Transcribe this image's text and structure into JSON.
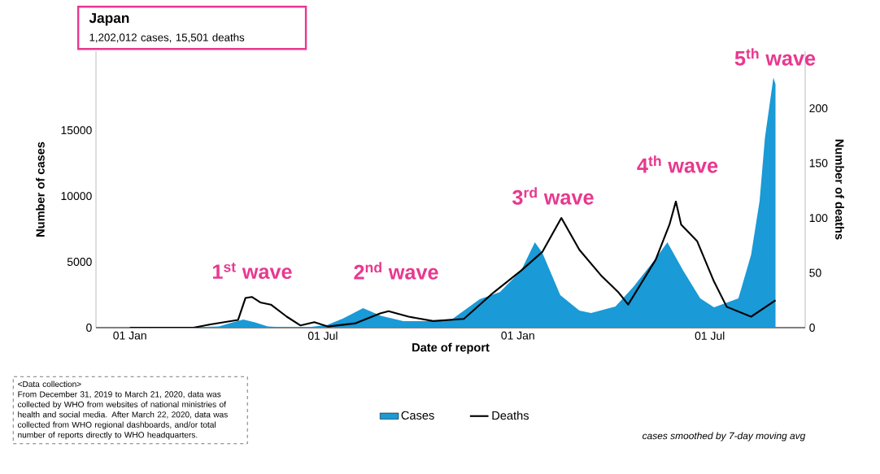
{
  "chart_data": {
    "type": "area",
    "title": "Japan",
    "subtitle": "1,202,012 cases, 15,501 deaths",
    "xlabel": "Date of report",
    "ylabel": "Number of cases",
    "y2label": "Number of deaths",
    "xlim": [
      "2019-11-30",
      "2021-09-29"
    ],
    "xticks": [
      {
        "value": "2020-01-01",
        "label": "01 Jan"
      },
      {
        "value": "2020-07-01",
        "label": "01 Jul"
      },
      {
        "value": "2021-01-01",
        "label": "01 Jan"
      },
      {
        "value": "2021-07-01",
        "label": "01 Jul"
      }
    ],
    "ylim": [
      0,
      21000
    ],
    "yticks": [
      0,
      5000,
      10000,
      15000
    ],
    "y2lim": [
      0,
      252
    ],
    "y2ticks": [
      0,
      50,
      100,
      150,
      200
    ],
    "legend": "bottom",
    "series": [
      {
        "name": "Cases",
        "color": "#1a9ad6",
        "x": [
          "2020-01-01",
          "2020-03-01",
          "2020-03-25",
          "2020-04-05",
          "2020-04-17",
          "2020-04-28",
          "2020-05-10",
          "2020-05-25",
          "2020-06-20",
          "2020-07-05",
          "2020-07-20",
          "2020-08-08",
          "2020-08-25",
          "2020-09-15",
          "2020-10-10",
          "2020-10-31",
          "2020-11-26",
          "2020-12-15",
          "2021-01-04",
          "2021-01-17",
          "2021-01-24",
          "2021-02-10",
          "2021-02-28",
          "2021-03-11",
          "2021-04-03",
          "2021-04-20",
          "2021-05-11",
          "2021-05-22",
          "2021-06-06",
          "2021-06-22",
          "2021-07-05",
          "2021-07-28",
          "2021-08-09",
          "2021-08-17",
          "2021-08-22",
          "2021-08-30",
          "2021-09-01"
        ],
        "values": [
          0,
          20,
          100,
          350,
          620,
          400,
          100,
          30,
          60,
          200,
          700,
          1480,
          900,
          500,
          500,
          650,
          2160,
          2700,
          4320,
          6480,
          5700,
          2470,
          1300,
          1110,
          1600,
          3100,
          5250,
          6480,
          4320,
          2220,
          1540,
          2220,
          5550,
          9630,
          14400,
          19000,
          18500
        ]
      },
      {
        "name": "Deaths",
        "type": "line",
        "axis": "y2",
        "color": "#000000",
        "x": [
          "2020-01-01",
          "2020-03-01",
          "2020-03-17",
          "2020-04-12",
          "2020-04-19",
          "2020-04-25",
          "2020-05-03",
          "2020-05-13",
          "2020-05-28",
          "2020-06-10",
          "2020-06-23",
          "2020-07-06",
          "2020-08-01",
          "2020-08-24",
          "2020-09-01",
          "2020-09-20",
          "2020-10-13",
          "2020-11-11",
          "2020-12-09",
          "2021-01-04",
          "2021-01-24",
          "2021-02-11",
          "2021-02-28",
          "2021-03-21",
          "2021-04-06",
          "2021-04-15",
          "2021-05-11",
          "2021-05-24",
          "2021-05-30",
          "2021-06-04",
          "2021-06-19",
          "2021-07-05",
          "2021-07-17",
          "2021-08-09",
          "2021-09-01"
        ],
        "values": [
          0,
          0,
          3,
          7,
          27,
          28,
          23,
          21,
          10,
          2,
          5,
          1,
          4,
          13,
          15,
          10,
          6,
          8,
          32,
          52,
          69,
          100,
          71,
          47,
          32,
          21,
          62,
          94,
          115,
          94,
          79,
          42,
          19,
          10,
          25
        ]
      }
    ],
    "annotations": [
      "1$^{st}$ wave",
      "2$^{nd}$ wave",
      "3$^{rd}$ wave",
      "4$^{th}$ wave",
      "5$^{th}$ wave",
      "<Data collection>",
      "From December 31, 2019 to March 21, 2020, data was collected by WHO from websites of national ministries of health and social media. After March 22, 2020, data was collected from WHO regional dashboards, and/or total number of reports directly to WHO headquarters.",
      "cases smoothed by 7-day moving avg"
    ]
  }
}
